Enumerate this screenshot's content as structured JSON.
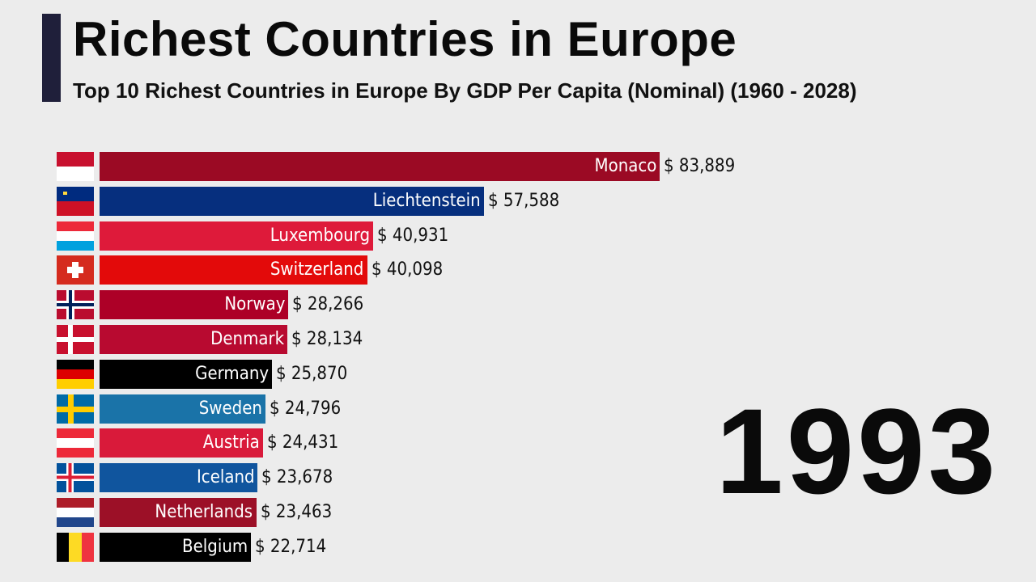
{
  "chart_data": {
    "type": "bar",
    "orientation": "horizontal",
    "title": "Richest Countries in Europe",
    "subtitle": "Top 10 Richest Countries in Europe By GDP Per Capita (Nominal) (1960 - 2028)",
    "year": "1993",
    "value_prefix": "$ ",
    "categories": [
      "Monaco",
      "Liechtenstein",
      "Luxembourg",
      "Switzerland",
      "Norway",
      "Denmark",
      "Germany",
      "Sweden",
      "Austria",
      "Iceland",
      "Netherlands",
      "Belgium"
    ],
    "values": [
      83889,
      57588,
      40931,
      40098,
      28266,
      28134,
      25870,
      24796,
      24431,
      23678,
      23463,
      22714
    ],
    "value_labels": [
      "$ 83,889",
      "$ 57,588",
      "$ 40,931",
      "$ 40,098",
      "$ 28,266",
      "$ 28,134",
      "$ 25,870",
      "$ 24,796",
      "$ 24,431",
      "$ 23,678",
      "$ 23,463",
      "$ 22,714"
    ],
    "colors": [
      "#9b0a24",
      "#062f7e",
      "#de1a3a",
      "#e30a0a",
      "#ad0027",
      "#b80a30",
      "#000000",
      "#1a73a8",
      "#d91a3a",
      "#10559e",
      "#9c1027",
      "#000000"
    ],
    "flag_icons": [
      "flag-monaco",
      "flag-liechtenstein",
      "flag-luxembourg",
      "flag-switzerland",
      "flag-norway",
      "flag-denmark",
      "flag-germany",
      "flag-sweden",
      "flag-austria",
      "flag-iceland",
      "flag-netherlands",
      "flag-belgium"
    ],
    "xlim": [
      0,
      83889
    ],
    "grid": false,
    "legend": "none"
  }
}
